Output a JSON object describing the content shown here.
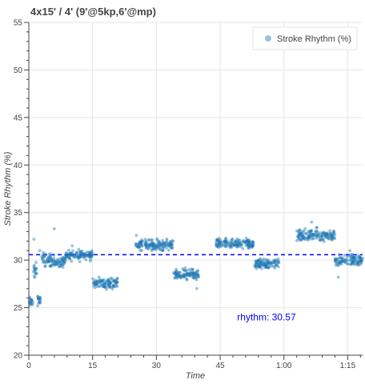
{
  "chart_data": {
    "type": "scatter",
    "title": "4x15' / 4' (9'@5kp,6'@mp)",
    "xlabel": "Time",
    "ylabel": "Stroke Rhythm (%)",
    "xlim": [
      0,
      78.5
    ],
    "ylim": [
      20,
      55
    ],
    "x_unit": "minutes",
    "x_ticks": [
      {
        "value": 0,
        "label": "0"
      },
      {
        "value": 15,
        "label": "15"
      },
      {
        "value": 30,
        "label": "30"
      },
      {
        "value": 45,
        "label": "45"
      },
      {
        "value": 60,
        "label": "1:00"
      },
      {
        "value": 75,
        "label": "1:15"
      }
    ],
    "y_ticks": [
      20,
      25,
      30,
      35,
      40,
      45,
      50,
      55
    ],
    "grid": true,
    "legend": {
      "position": "top-right",
      "entries": [
        "Stroke Rhythm (%)"
      ]
    },
    "series_color": "#1f77b4",
    "reference_line": {
      "y": 30.57,
      "color": "#0000ff",
      "style": "dashed"
    },
    "annotation": {
      "text": "rhythm:  30.57",
      "x": 49,
      "y": 24,
      "color": "#0000ff"
    },
    "segments": [
      {
        "x_start": 0.0,
        "x_end": 1.0,
        "y_mean": 25.6,
        "spread": 0.5
      },
      {
        "x_start": 1.0,
        "x_end": 2.0,
        "y_mean": 28.8,
        "spread": 0.8
      },
      {
        "x_start": 2.0,
        "x_end": 3.0,
        "y_mean": 25.8,
        "spread": 0.5
      },
      {
        "x_start": 3.0,
        "x_end": 6.0,
        "y_mean": 30.0,
        "spread": 0.6
      },
      {
        "x_start": 6.0,
        "x_end": 8.5,
        "y_mean": 29.8,
        "spread": 0.5
      },
      {
        "x_start": 8.5,
        "x_end": 15.0,
        "y_mean": 30.5,
        "spread": 0.5
      },
      {
        "x_start": 15.0,
        "x_end": 21.0,
        "y_mean": 27.6,
        "spread": 0.5
      },
      {
        "x_start": 25.0,
        "x_end": 34.0,
        "y_mean": 31.6,
        "spread": 0.5
      },
      {
        "x_start": 34.0,
        "x_end": 40.0,
        "y_mean": 28.5,
        "spread": 0.5
      },
      {
        "x_start": 44.0,
        "x_end": 53.0,
        "y_mean": 31.7,
        "spread": 0.5
      },
      {
        "x_start": 53.0,
        "x_end": 59.0,
        "y_mean": 29.6,
        "spread": 0.5
      },
      {
        "x_start": 63.0,
        "x_end": 72.0,
        "y_mean": 32.6,
        "spread": 0.6
      },
      {
        "x_start": 72.0,
        "x_end": 78.5,
        "y_mean": 30.0,
        "spread": 0.5
      }
    ],
    "outliers": [
      {
        "x": 1.2,
        "y": 32.2
      },
      {
        "x": 2.6,
        "y": 31.0
      },
      {
        "x": 3.4,
        "y": 30.8
      },
      {
        "x": 6.0,
        "y": 33.3
      },
      {
        "x": 10.2,
        "y": 31.5
      },
      {
        "x": 25.3,
        "y": 32.6
      },
      {
        "x": 39.5,
        "y": 27.0
      },
      {
        "x": 63.3,
        "y": 32.4
      },
      {
        "x": 66.5,
        "y": 34.0
      },
      {
        "x": 72.8,
        "y": 28.2
      },
      {
        "x": 75.5,
        "y": 31.0
      }
    ]
  }
}
